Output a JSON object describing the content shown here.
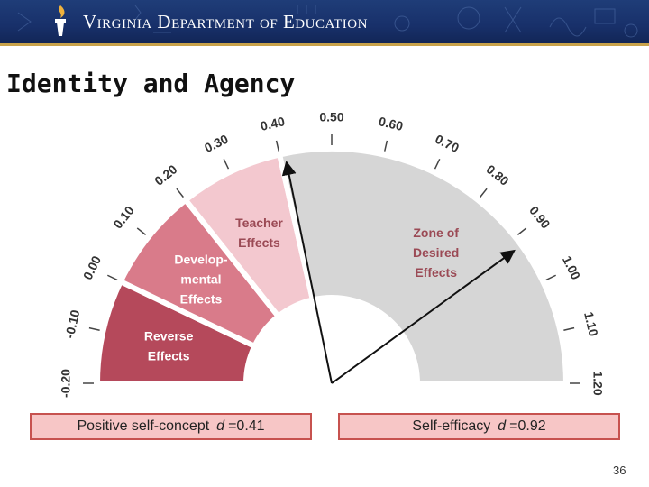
{
  "header": {
    "org_title": "Virginia Department of Education",
    "brand_color": "#1f3d78"
  },
  "slide": {
    "title": "Identity and Agency",
    "number": "36"
  },
  "barometer": {
    "ticks": [
      "-0.20",
      "-0.10",
      "0.00",
      "0.10",
      "0.20",
      "0.30",
      "0.40",
      "0.50",
      "0.60",
      "0.70",
      "0.80",
      "0.90",
      "1.00",
      "1.10",
      "1.20"
    ],
    "zones": [
      {
        "lines": [
          "Reverse",
          "Effects"
        ],
        "from": -0.2,
        "to": 0.0,
        "color": "#b5495b"
      },
      {
        "lines": [
          "Develop-",
          "mental",
          "Effects"
        ],
        "from": 0.0,
        "to": 0.2,
        "color": "#d97b8a"
      },
      {
        "lines": [
          "Teacher",
          "Effects"
        ],
        "from": 0.2,
        "to": 0.4,
        "color": "#f3c8cf"
      },
      {
        "lines": [
          "Zone of",
          "Desired",
          "Effects"
        ],
        "from": 0.4,
        "to": 1.2,
        "color": "#d6d6d6"
      }
    ],
    "pointers": [
      0.41,
      0.92
    ]
  },
  "results": [
    {
      "label": "Positive self-concept",
      "symbol": "d",
      "value": "0.41"
    },
    {
      "label": "Self-efficacy",
      "symbol": "d",
      "value": "0.92"
    }
  ]
}
